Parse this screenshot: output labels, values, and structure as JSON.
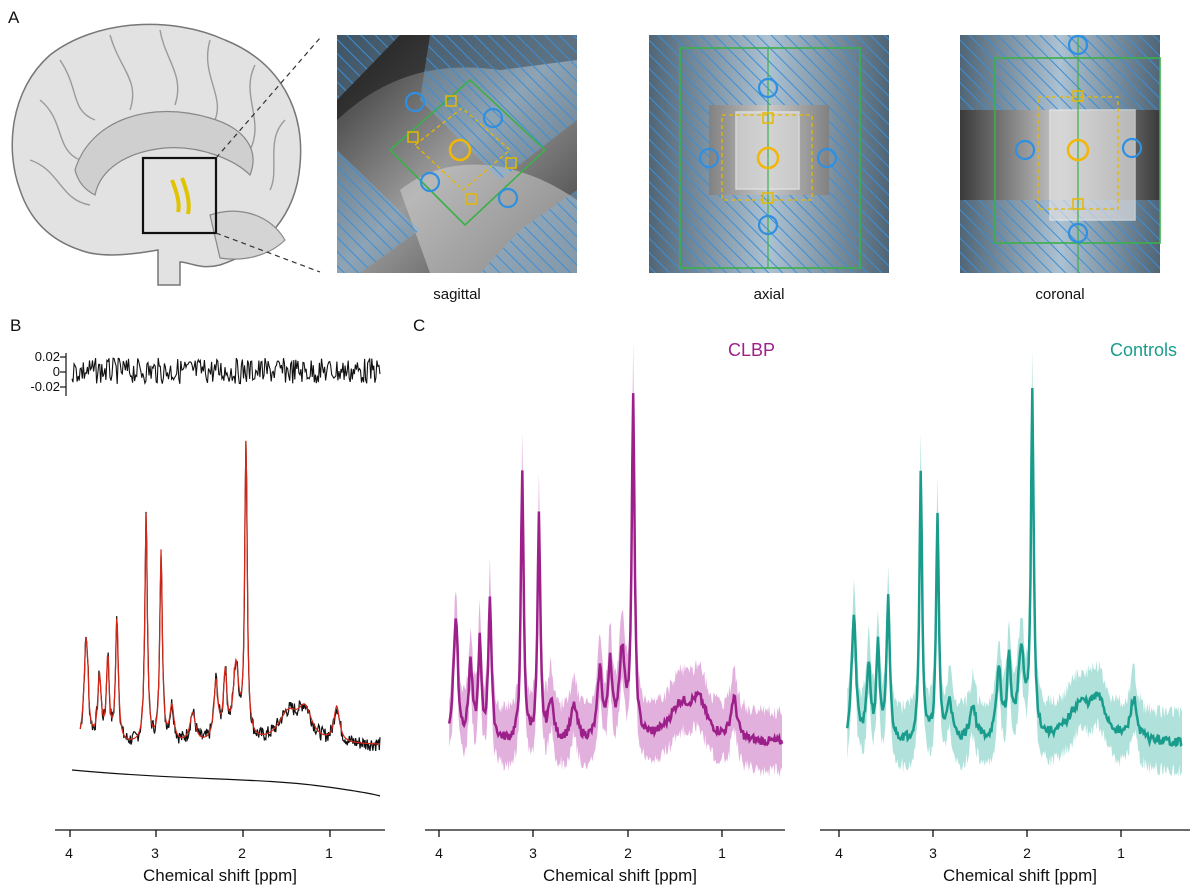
{
  "panels": {
    "a": "A",
    "b": "B",
    "c": "C"
  },
  "views": [
    "sagittal",
    "axial",
    "coronal"
  ],
  "groups": [
    {
      "label": "CLBP",
      "color": "#9c1f8a",
      "band": "#d68fce"
    },
    {
      "label": "Controls",
      "color": "#1a9c8d",
      "band": "#8fd6cc"
    }
  ],
  "fit_colors": {
    "data": "#111111",
    "fit": "#d62718",
    "baseline": "#111111"
  },
  "residual_ticks": [
    "0.02",
    "0",
    "-0.02"
  ],
  "x_axis_label": "Chemical shift [ppm]",
  "x_ticks": [
    "4",
    "3",
    "2",
    "1"
  ],
  "chart_data": [
    {
      "type": "line",
      "panel": "B",
      "series": [],
      "x_range": [
        4.1,
        0.4
      ],
      "xlabel": "Chemical shift [ppm]",
      "peaks_ppm": [
        3.9,
        3.75,
        3.65,
        3.55,
        3.2,
        3.02,
        2.35,
        2.25,
        2.01,
        1.3,
        0.9
      ],
      "residual_ylim": [
        -0.02,
        0.02
      ]
    },
    {
      "type": "line",
      "panel": "C",
      "series": [
        {
          "name": "CLBP"
        },
        {
          "name": "Controls"
        }
      ],
      "x_range": [
        4.1,
        0.4
      ],
      "xlabel": "Chemical shift [ppm]",
      "peaks_ppm": [
        3.9,
        3.65,
        3.55,
        3.2,
        3.02,
        2.25,
        2.01,
        1.3,
        0.9
      ]
    }
  ]
}
